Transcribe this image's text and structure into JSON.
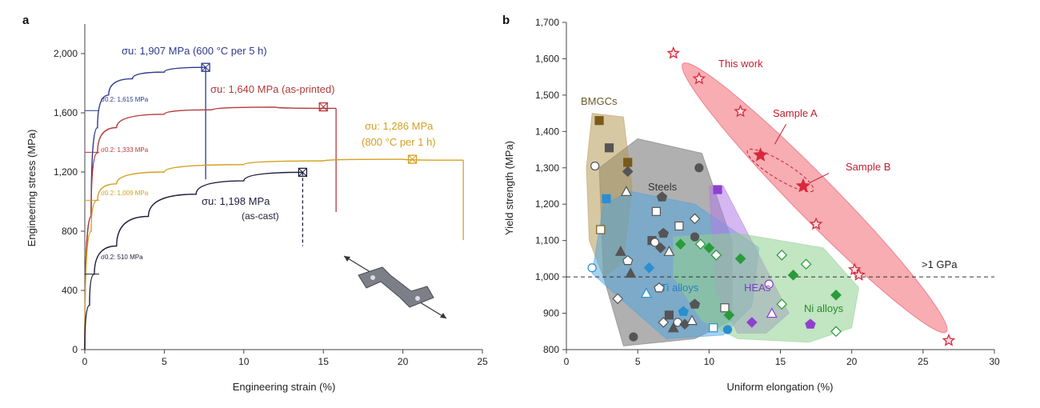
{
  "chart_data": [
    {
      "panel_label": "a",
      "type": "line",
      "xlabel": "Engineering strain (%)",
      "ylabel": "Engineering stress (MPa)",
      "xlim": [
        0,
        25
      ],
      "ylim": [
        0,
        2200
      ],
      "xticks": [
        0,
        5,
        10,
        15,
        20,
        25
      ],
      "yticks": [
        0,
        400,
        800,
        1200,
        1600,
        2000
      ],
      "ytick_labels": [
        "0",
        "400",
        "800",
        "1,200",
        "1,600",
        "2,000"
      ],
      "grid": false,
      "series": [
        {
          "key": "600C",
          "color": "#2e3a8c",
          "points": [
            [
              0,
              0
            ],
            [
              0.4,
              900
            ],
            [
              0.8,
              1500
            ],
            [
              1.5,
              1720
            ],
            [
              3,
              1830
            ],
            [
              5,
              1875
            ],
            [
              7.6,
              1907
            ]
          ],
          "fracture": [
            7.6,
            1907
          ],
          "drop_to": 1150
        },
        {
          "key": "printed",
          "color": "#b33a3a",
          "points": [
            [
              0,
              0
            ],
            [
              0.4,
              900
            ],
            [
              0.8,
              1330
            ],
            [
              2,
              1500
            ],
            [
              5,
              1590
            ],
            [
              8,
              1620
            ],
            [
              12,
              1638
            ],
            [
              15.8,
              1630
            ]
          ],
          "fracture": [
            15.8,
            1630
          ],
          "drop_to": 930,
          "peak": [
            15,
            1640
          ]
        },
        {
          "key": "800C",
          "color": "#d4a020",
          "points": [
            [
              0,
              0
            ],
            [
              0.4,
              800
            ],
            [
              0.8,
              1010
            ],
            [
              2,
              1120
            ],
            [
              5,
              1200
            ],
            [
              10,
              1250
            ],
            [
              15,
              1275
            ],
            [
              20,
              1286
            ],
            [
              23.8,
              1280
            ]
          ],
          "fracture": [
            23.8,
            1280
          ],
          "drop_to": 740,
          "peak": [
            20.6,
            1286
          ]
        },
        {
          "key": "cast",
          "color": "#1f1f3d",
          "points": [
            [
              0,
              0
            ],
            [
              0.3,
              300
            ],
            [
              0.6,
              510
            ],
            [
              2,
              700
            ],
            [
              4,
              900
            ],
            [
              7,
              1050
            ],
            [
              10,
              1140
            ],
            [
              13.7,
              1198
            ]
          ],
          "fracture": [
            13.7,
            1198
          ],
          "drop_to": 700,
          "dashed_drop": true
        }
      ],
      "annotations": [
        {
          "key": "ann_600",
          "text": "σu: 1,907 MPa (600 °C per 5 h)",
          "color": "#2e3a8c"
        },
        {
          "key": "ann_printed",
          "text": "σu: 1,640 MPa (as-printed)",
          "color": "#b33a3a"
        },
        {
          "key": "ann_800",
          "line1": "σu: 1,286 MPa",
          "line2": "(800 °C per 1 h)",
          "color": "#d4a020"
        },
        {
          "key": "ann_cast",
          "line1": "σu: 1,198 MPa",
          "line2": "(as-cast)",
          "color": "#1f1f3d"
        },
        {
          "key": "ann_y1615",
          "text": "σ0.2: 1,615 MPa",
          "color": "#2e3a8c",
          "value": 1615
        },
        {
          "key": "ann_y1333",
          "text": "σ0.2: 1,333 MPa",
          "color": "#b33a3a",
          "value": 1333
        },
        {
          "key": "ann_y1009",
          "text": "σ0.2: 1,009 MPa",
          "color": "#d4a020",
          "value": 1009
        },
        {
          "key": "ann_y510",
          "text": "σ0.2: 510 MPa",
          "color": "#1f1f3d",
          "value": 510
        }
      ]
    },
    {
      "panel_label": "b",
      "type": "scatter",
      "xlabel": "Uniform elongation (%)",
      "ylabel": "Yield strength (MPa)",
      "xlim": [
        0,
        30
      ],
      "ylim": [
        800,
        1700
      ],
      "xticks": [
        0,
        5,
        10,
        15,
        20,
        25,
        30
      ],
      "yticks": [
        800,
        900,
        1000,
        1100,
        1200,
        1300,
        1400,
        1500,
        1600,
        1700
      ],
      "ytick_labels": [
        "800",
        "900",
        "1,000",
        "1,100",
        "1,200",
        "1,300",
        "1,400",
        "1,500",
        "1,600",
        "1,700"
      ],
      "grid": false,
      "reference_line": {
        "y": 1000,
        "label": ">1 GPa"
      },
      "region_labels": [
        {
          "key": "bmgc",
          "text": "BMGCs",
          "color": "#6b5a2a"
        },
        {
          "key": "steels",
          "text": "Steels",
          "color": "#333333"
        },
        {
          "key": "ti",
          "text": "Ti alloys",
          "color": "#2a7fc0"
        },
        {
          "key": "hea",
          "text": "HEAs",
          "color": "#7a3fc0"
        },
        {
          "key": "ni",
          "text": "Ni alloys",
          "color": "#2a8a2a"
        },
        {
          "key": "thiswork",
          "text": "This work",
          "color": "#c02030"
        },
        {
          "key": "sampleA",
          "text": "Sample A",
          "color": "#c02030"
        },
        {
          "key": "sampleB",
          "text": "Sample B",
          "color": "#c02030"
        }
      ],
      "series": [
        {
          "name": "This work",
          "color": "#d8283c",
          "marker": "star",
          "points": [
            [
              7.5,
              1615
            ],
            [
              9.3,
              1545
            ],
            [
              12.2,
              1455
            ],
            [
              17.5,
              1145
            ],
            [
              20.2,
              1020
            ],
            [
              20.5,
              1005
            ],
            [
              26.8,
              825
            ]
          ],
          "filled_points": [
            [
              13.6,
              1335
            ],
            [
              16.6,
              1250
            ]
          ]
        },
        {
          "name": "BMGCs",
          "color": "#7a5a1a",
          "marker": "square",
          "points": [
            [
              2.3,
              1430
            ],
            [
              2.4,
              1130
            ],
            [
              4.3,
              1315
            ]
          ]
        },
        {
          "name": "Steels",
          "color": "#555555",
          "marker": "mixed",
          "points": [
            [
              3,
              1355
            ],
            [
              2,
              1305
            ],
            [
              4.3,
              1290
            ],
            [
              4.2,
              1235
            ],
            [
              6.7,
              1220
            ],
            [
              6.3,
              1180
            ],
            [
              9.3,
              1300
            ],
            [
              9,
              1160
            ],
            [
              3.8,
              1070
            ],
            [
              4.3,
              1045
            ],
            [
              6,
              1100
            ],
            [
              6.2,
              1095
            ],
            [
              6.6,
              1080
            ],
            [
              7.2,
              1070
            ],
            [
              6.8,
              1120
            ],
            [
              7.9,
              1140
            ],
            [
              9,
              1110
            ],
            [
              3.6,
              940
            ],
            [
              4.5,
              1010
            ],
            [
              6.5,
              970
            ],
            [
              7.2,
              895
            ],
            [
              7.8,
              875
            ],
            [
              8.3,
              870
            ],
            [
              8.8,
              880
            ],
            [
              9,
              925
            ],
            [
              11.1,
              915
            ],
            [
              4.7,
              835
            ],
            [
              6.8,
              875
            ],
            [
              7.5,
              860
            ]
          ]
        },
        {
          "name": "Ti alloys",
          "color": "#2a8fd0",
          "marker": "mixed",
          "points": [
            [
              2.8,
              1215
            ],
            [
              1.8,
              1025
            ],
            [
              5.8,
              1025
            ],
            [
              5.6,
              955
            ],
            [
              8.2,
              905
            ],
            [
              10.3,
              860
            ],
            [
              11.3,
              855
            ]
          ]
        },
        {
          "name": "HEAs",
          "color": "#9040d0",
          "marker": "mixed",
          "points": [
            [
              10.6,
              1240
            ],
            [
              14.2,
              980
            ],
            [
              13,
              875
            ],
            [
              14.4,
              900
            ],
            [
              17.1,
              870
            ]
          ]
        },
        {
          "name": "Ni alloys",
          "color": "#2a9a3a",
          "marker": "diamond",
          "points": [
            [
              8,
              1090
            ],
            [
              9.4,
              1090
            ],
            [
              10,
              1080
            ],
            [
              10.5,
              1060
            ],
            [
              12.2,
              1050
            ],
            [
              15.1,
              1060
            ],
            [
              15.9,
              1005
            ],
            [
              16.8,
              1035
            ],
            [
              18.9,
              950
            ],
            [
              15.1,
              925
            ],
            [
              11.4,
              895
            ],
            [
              18.9,
              850
            ]
          ]
        }
      ]
    }
  ]
}
